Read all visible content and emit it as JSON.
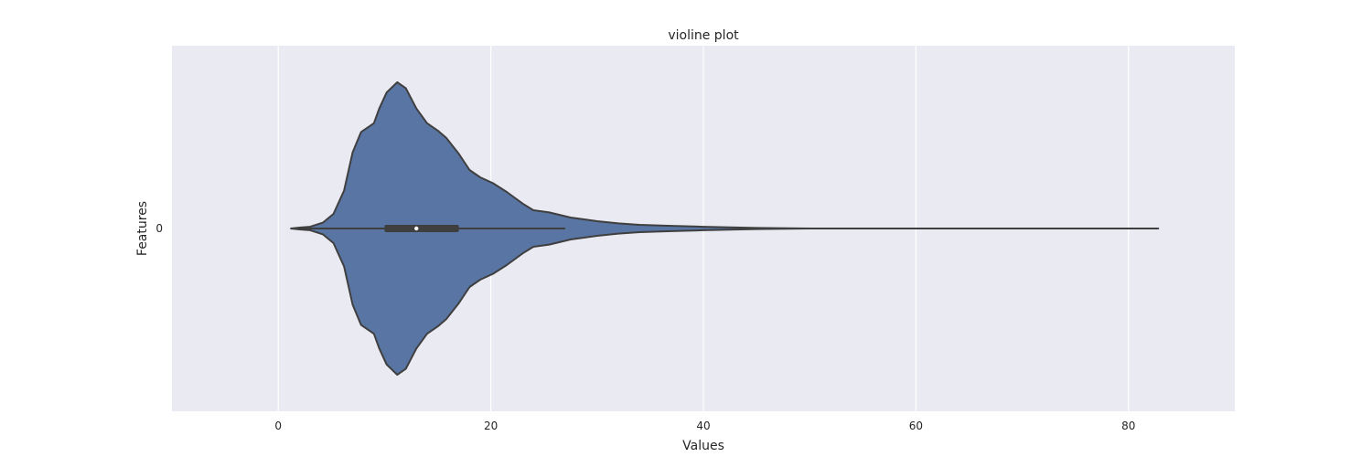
{
  "chart_data": {
    "type": "violin",
    "title": "violine plot",
    "xlabel": "Values",
    "ylabel": "Features",
    "xlim": [
      -10,
      90
    ],
    "x_ticks": [
      0,
      20,
      40,
      60,
      80
    ],
    "y_tick_labels": [
      "0"
    ],
    "grid": true,
    "colors": {
      "background": "#eaeaf2",
      "grid": "#ffffff",
      "violin_fill": "#5975a4",
      "outline": "#3f3f3f"
    },
    "violin": {
      "category": "0",
      "density_profile": [
        [
          1.2,
          0.0
        ],
        [
          2.0,
          0.006
        ],
        [
          3.0,
          0.012
        ],
        [
          4.2,
          0.04
        ],
        [
          5.2,
          0.1
        ],
        [
          6.2,
          0.26
        ],
        [
          7.0,
          0.52
        ],
        [
          7.8,
          0.66
        ],
        [
          9.0,
          0.72
        ],
        [
          9.5,
          0.82
        ],
        [
          10.2,
          0.93
        ],
        [
          11.2,
          1.0
        ],
        [
          12.0,
          0.96
        ],
        [
          13.0,
          0.82
        ],
        [
          14.0,
          0.72
        ],
        [
          15.0,
          0.67
        ],
        [
          15.8,
          0.62
        ],
        [
          17.0,
          0.51
        ],
        [
          18.0,
          0.4
        ],
        [
          19.0,
          0.35
        ],
        [
          20.2,
          0.31
        ],
        [
          21.5,
          0.25
        ],
        [
          23.0,
          0.17
        ],
        [
          24.0,
          0.125
        ],
        [
          25.5,
          0.11
        ],
        [
          27.5,
          0.075
        ],
        [
          30.0,
          0.05
        ],
        [
          32.0,
          0.035
        ],
        [
          34.0,
          0.025
        ],
        [
          37.0,
          0.018
        ],
        [
          40.0,
          0.012
        ],
        [
          45.0,
          0.004
        ],
        [
          50.0,
          0.0
        ],
        [
          82.8,
          0.0
        ]
      ],
      "whisker_min": 1.2,
      "whisker_max": 27,
      "q1": 10,
      "median": 13,
      "q3": 17,
      "max": 82.8
    }
  }
}
